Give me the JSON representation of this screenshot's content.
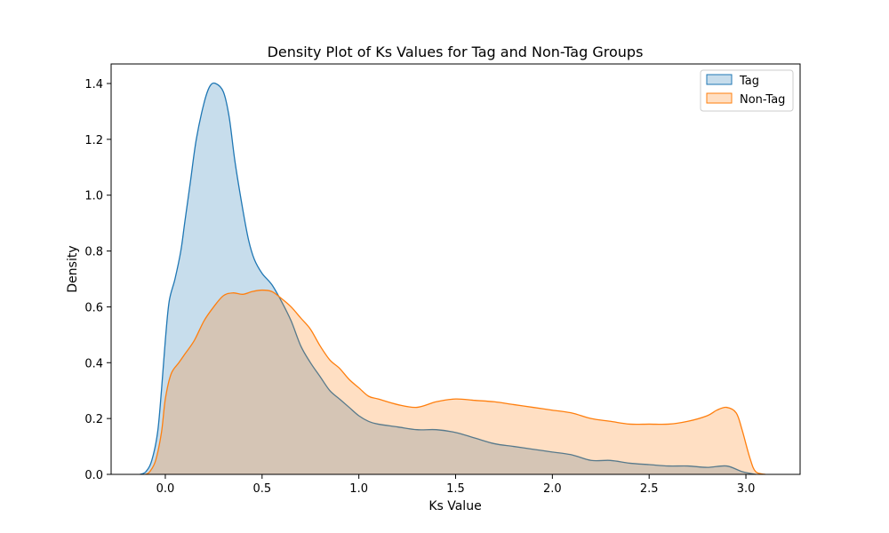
{
  "chart_data": {
    "type": "area",
    "title": "Density Plot of Ks Values for Tag and Non-Tag Groups",
    "xlabel": "Ks Value",
    "ylabel": "Density",
    "xlim": [
      -0.28,
      3.28
    ],
    "ylim": [
      0,
      1.47
    ],
    "xticks": [
      "0.0",
      "0.5",
      "1.0",
      "1.5",
      "2.0",
      "2.5",
      "3.0"
    ],
    "yticks": [
      "0.0",
      "0.2",
      "0.4",
      "0.6",
      "0.8",
      "1.0",
      "1.2",
      "1.4"
    ],
    "grid": false,
    "legend_position": "top-right",
    "series": [
      {
        "name": "Tag",
        "color": "#1f77b4",
        "fill": "#1f77b4",
        "x": [
          -0.13,
          -0.1,
          -0.07,
          -0.04,
          -0.02,
          0.0,
          0.02,
          0.05,
          0.08,
          0.1,
          0.13,
          0.16,
          0.2,
          0.23,
          0.26,
          0.3,
          0.33,
          0.36,
          0.4,
          0.43,
          0.46,
          0.5,
          0.55,
          0.6,
          0.65,
          0.7,
          0.75,
          0.8,
          0.85,
          0.9,
          0.95,
          1.0,
          1.05,
          1.1,
          1.2,
          1.3,
          1.4,
          1.5,
          1.6,
          1.7,
          1.8,
          1.9,
          2.0,
          2.1,
          2.2,
          2.3,
          2.4,
          2.5,
          2.6,
          2.7,
          2.8,
          2.9,
          2.98,
          3.05
        ],
        "y": [
          0.0,
          0.01,
          0.05,
          0.15,
          0.3,
          0.48,
          0.62,
          0.7,
          0.8,
          0.9,
          1.05,
          1.2,
          1.33,
          1.39,
          1.4,
          1.37,
          1.28,
          1.12,
          0.95,
          0.84,
          0.77,
          0.72,
          0.68,
          0.62,
          0.55,
          0.46,
          0.4,
          0.35,
          0.3,
          0.27,
          0.24,
          0.21,
          0.19,
          0.18,
          0.17,
          0.16,
          0.16,
          0.15,
          0.13,
          0.11,
          0.1,
          0.09,
          0.08,
          0.07,
          0.05,
          0.05,
          0.04,
          0.035,
          0.03,
          0.03,
          0.025,
          0.03,
          0.01,
          0.0
        ]
      },
      {
        "name": "Non-Tag",
        "color": "#ff7f0e",
        "fill": "#ff7f0e",
        "x": [
          -0.1,
          -0.08,
          -0.05,
          -0.02,
          0.0,
          0.03,
          0.07,
          0.1,
          0.15,
          0.2,
          0.25,
          0.3,
          0.35,
          0.4,
          0.45,
          0.5,
          0.55,
          0.6,
          0.65,
          0.7,
          0.75,
          0.8,
          0.85,
          0.9,
          0.95,
          1.0,
          1.05,
          1.1,
          1.2,
          1.3,
          1.4,
          1.5,
          1.6,
          1.7,
          1.8,
          1.9,
          2.0,
          2.1,
          2.2,
          2.3,
          2.4,
          2.5,
          2.6,
          2.7,
          2.8,
          2.85,
          2.9,
          2.95,
          2.98,
          3.02,
          3.05,
          3.1
        ],
        "y": [
          0.0,
          0.01,
          0.05,
          0.15,
          0.27,
          0.36,
          0.4,
          0.43,
          0.48,
          0.55,
          0.6,
          0.64,
          0.65,
          0.645,
          0.655,
          0.66,
          0.655,
          0.63,
          0.6,
          0.56,
          0.52,
          0.46,
          0.41,
          0.38,
          0.34,
          0.31,
          0.28,
          0.27,
          0.25,
          0.24,
          0.26,
          0.27,
          0.265,
          0.26,
          0.25,
          0.24,
          0.23,
          0.22,
          0.2,
          0.19,
          0.18,
          0.18,
          0.18,
          0.19,
          0.21,
          0.23,
          0.24,
          0.22,
          0.16,
          0.06,
          0.01,
          0.0
        ]
      }
    ]
  }
}
